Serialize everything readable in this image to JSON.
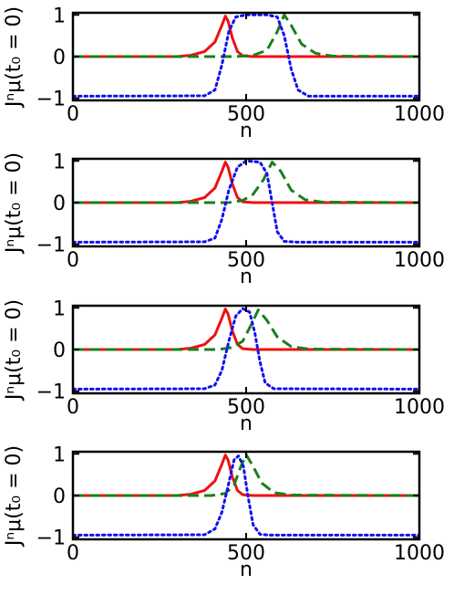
{
  "figure": {
    "axis_color": "#000000",
    "colors": {
      "red": "#ee1111",
      "green": "#1a7f1a",
      "blue": "#1111ee"
    }
  },
  "chart_data": [
    {
      "type": "line",
      "title": "",
      "xlabel": "n",
      "ylabel": "Jⁿμ(t₀ = 0)",
      "xlim": [
        0,
        1000
      ],
      "ylim": [
        -1.05,
        1.05
      ],
      "xticks": [
        0,
        500,
        1000
      ],
      "xtick_labels": [
        "0",
        "500",
        "1000"
      ],
      "yticks": [
        -1,
        0,
        1
      ],
      "ytick_labels": [
        "−1",
        "0",
        "1"
      ],
      "grid": false,
      "series": [
        {
          "color": "red",
          "style": "solid",
          "values": [
            [
              0,
              0
            ],
            [
              300,
              0.0
            ],
            [
              340,
              0.03
            ],
            [
              380,
              0.12
            ],
            [
              410,
              0.35
            ],
            [
              430,
              0.75
            ],
            [
              440,
              0.97
            ],
            [
              448,
              0.85
            ],
            [
              460,
              0.45
            ],
            [
              475,
              0.12
            ],
            [
              490,
              0.02
            ],
            [
              520,
              0.0
            ],
            [
              1000,
              0.0
            ]
          ]
        },
        {
          "color": "green",
          "style": "dashed",
          "values": [
            [
              0,
              0
            ],
            [
              470,
              0.0
            ],
            [
              520,
              0.03
            ],
            [
              560,
              0.15
            ],
            [
              590,
              0.6
            ],
            [
              610,
              1.0
            ],
            [
              630,
              0.75
            ],
            [
              660,
              0.3
            ],
            [
              700,
              0.08
            ],
            [
              750,
              0.01
            ],
            [
              1000,
              0.0
            ]
          ]
        },
        {
          "color": "blue",
          "style": "dotted",
          "values": [
            [
              0,
              -0.95
            ],
            [
              380,
              -0.94
            ],
            [
              410,
              -0.8
            ],
            [
              430,
              -0.2
            ],
            [
              450,
              0.6
            ],
            [
              470,
              0.95
            ],
            [
              500,
              1.0
            ],
            [
              560,
              1.0
            ],
            [
              590,
              0.95
            ],
            [
              610,
              0.5
            ],
            [
              630,
              -0.3
            ],
            [
              650,
              -0.8
            ],
            [
              680,
              -0.95
            ],
            [
              1000,
              -0.95
            ]
          ]
        }
      ]
    },
    {
      "type": "line",
      "title": "",
      "xlabel": "n",
      "ylabel": "Jⁿμ(t₀ = 0)",
      "xlim": [
        0,
        1000
      ],
      "ylim": [
        -1.05,
        1.05
      ],
      "xticks": [
        0,
        500,
        1000
      ],
      "xtick_labels": [
        "0",
        "500",
        "1000"
      ],
      "yticks": [
        -1,
        0,
        1
      ],
      "ytick_labels": [
        "−1",
        "0",
        "1"
      ],
      "grid": false,
      "series": [
        {
          "color": "red",
          "style": "solid",
          "values": [
            [
              0,
              0
            ],
            [
              300,
              0.0
            ],
            [
              340,
              0.03
            ],
            [
              380,
              0.12
            ],
            [
              410,
              0.35
            ],
            [
              430,
              0.75
            ],
            [
              440,
              0.97
            ],
            [
              448,
              0.85
            ],
            [
              460,
              0.45
            ],
            [
              475,
              0.12
            ],
            [
              490,
              0.02
            ],
            [
              520,
              0.0
            ],
            [
              1000,
              0.0
            ]
          ]
        },
        {
          "color": "green",
          "style": "dashed",
          "values": [
            [
              0,
              0
            ],
            [
              450,
              0.0
            ],
            [
              490,
              0.05
            ],
            [
              520,
              0.2
            ],
            [
              550,
              0.55
            ],
            [
              575,
              0.97
            ],
            [
              600,
              0.75
            ],
            [
              630,
              0.3
            ],
            [
              670,
              0.07
            ],
            [
              720,
              0.01
            ],
            [
              1000,
              0.0
            ]
          ]
        },
        {
          "color": "blue",
          "style": "dotted",
          "values": [
            [
              0,
              -0.95
            ],
            [
              380,
              -0.94
            ],
            [
              410,
              -0.85
            ],
            [
              430,
              -0.4
            ],
            [
              450,
              0.3
            ],
            [
              475,
              0.85
            ],
            [
              500,
              1.0
            ],
            [
              540,
              0.97
            ],
            [
              560,
              0.7
            ],
            [
              575,
              0.0
            ],
            [
              590,
              -0.7
            ],
            [
              610,
              -0.93
            ],
            [
              650,
              -0.95
            ],
            [
              1000,
              -0.95
            ]
          ]
        }
      ]
    },
    {
      "type": "line",
      "title": "",
      "xlabel": "n",
      "ylabel": "Jⁿμ(t₀ = 0)",
      "xlim": [
        0,
        1000
      ],
      "ylim": [
        -1.05,
        1.05
      ],
      "xticks": [
        0,
        500,
        1000
      ],
      "xtick_labels": [
        "0",
        "500",
        "1000"
      ],
      "yticks": [
        -1,
        0,
        1
      ],
      "ytick_labels": [
        "−1",
        "0",
        "1"
      ],
      "grid": false,
      "series": [
        {
          "color": "red",
          "style": "solid",
          "values": [
            [
              0,
              0
            ],
            [
              300,
              0.0
            ],
            [
              340,
              0.03
            ],
            [
              380,
              0.12
            ],
            [
              410,
              0.35
            ],
            [
              430,
              0.75
            ],
            [
              440,
              0.97
            ],
            [
              448,
              0.85
            ],
            [
              460,
              0.45
            ],
            [
              475,
              0.12
            ],
            [
              490,
              0.02
            ],
            [
              520,
              0.0
            ],
            [
              1000,
              0.0
            ]
          ]
        },
        {
          "color": "green",
          "style": "dashed",
          "values": [
            [
              0,
              0
            ],
            [
              420,
              0.0
            ],
            [
              460,
              0.05
            ],
            [
              490,
              0.2
            ],
            [
              515,
              0.6
            ],
            [
              535,
              0.95
            ],
            [
              560,
              0.7
            ],
            [
              590,
              0.3
            ],
            [
              630,
              0.07
            ],
            [
              680,
              0.01
            ],
            [
              1000,
              0.0
            ]
          ]
        },
        {
          "color": "blue",
          "style": "dotted",
          "values": [
            [
              0,
              -0.95
            ],
            [
              380,
              -0.94
            ],
            [
              410,
              -0.85
            ],
            [
              430,
              -0.5
            ],
            [
              450,
              0.2
            ],
            [
              470,
              0.8
            ],
            [
              490,
              0.98
            ],
            [
              510,
              0.9
            ],
            [
              525,
              0.4
            ],
            [
              540,
              -0.3
            ],
            [
              555,
              -0.8
            ],
            [
              580,
              -0.94
            ],
            [
              1000,
              -0.95
            ]
          ]
        }
      ]
    },
    {
      "type": "line",
      "title": "",
      "xlabel": "n",
      "ylabel": "Jⁿμ(t₀ = 0)",
      "xlim": [
        0,
        1000
      ],
      "ylim": [
        -1.05,
        1.05
      ],
      "xticks": [
        0,
        500,
        1000
      ],
      "xtick_labels": [
        "0",
        "500",
        "1000"
      ],
      "yticks": [
        -1,
        0,
        1
      ],
      "ytick_labels": [
        "−1",
        "0",
        "1"
      ],
      "grid": false,
      "series": [
        {
          "color": "red",
          "style": "solid",
          "values": [
            [
              0,
              0
            ],
            [
              300,
              0.0
            ],
            [
              340,
              0.03
            ],
            [
              380,
              0.12
            ],
            [
              410,
              0.35
            ],
            [
              430,
              0.75
            ],
            [
              440,
              0.97
            ],
            [
              448,
              0.85
            ],
            [
              460,
              0.45
            ],
            [
              475,
              0.12
            ],
            [
              490,
              0.02
            ],
            [
              520,
              0.0
            ],
            [
              1000,
              0.0
            ]
          ]
        },
        {
          "color": "green",
          "style": "dashed",
          "values": [
            [
              0,
              0
            ],
            [
              400,
              0.0
            ],
            [
              440,
              0.05
            ],
            [
              465,
              0.25
            ],
            [
              485,
              0.7
            ],
            [
              500,
              0.98
            ],
            [
              520,
              0.7
            ],
            [
              545,
              0.3
            ],
            [
              580,
              0.07
            ],
            [
              630,
              0.01
            ],
            [
              1000,
              0.0
            ]
          ]
        },
        {
          "color": "blue",
          "style": "dotted",
          "values": [
            [
              0,
              -0.95
            ],
            [
              380,
              -0.94
            ],
            [
              410,
              -0.8
            ],
            [
              430,
              -0.4
            ],
            [
              450,
              0.3
            ],
            [
              465,
              0.85
            ],
            [
              478,
              0.95
            ],
            [
              492,
              0.7
            ],
            [
              505,
              0.0
            ],
            [
              520,
              -0.7
            ],
            [
              540,
              -0.93
            ],
            [
              570,
              -0.95
            ],
            [
              1000,
              -0.95
            ]
          ]
        }
      ]
    }
  ]
}
